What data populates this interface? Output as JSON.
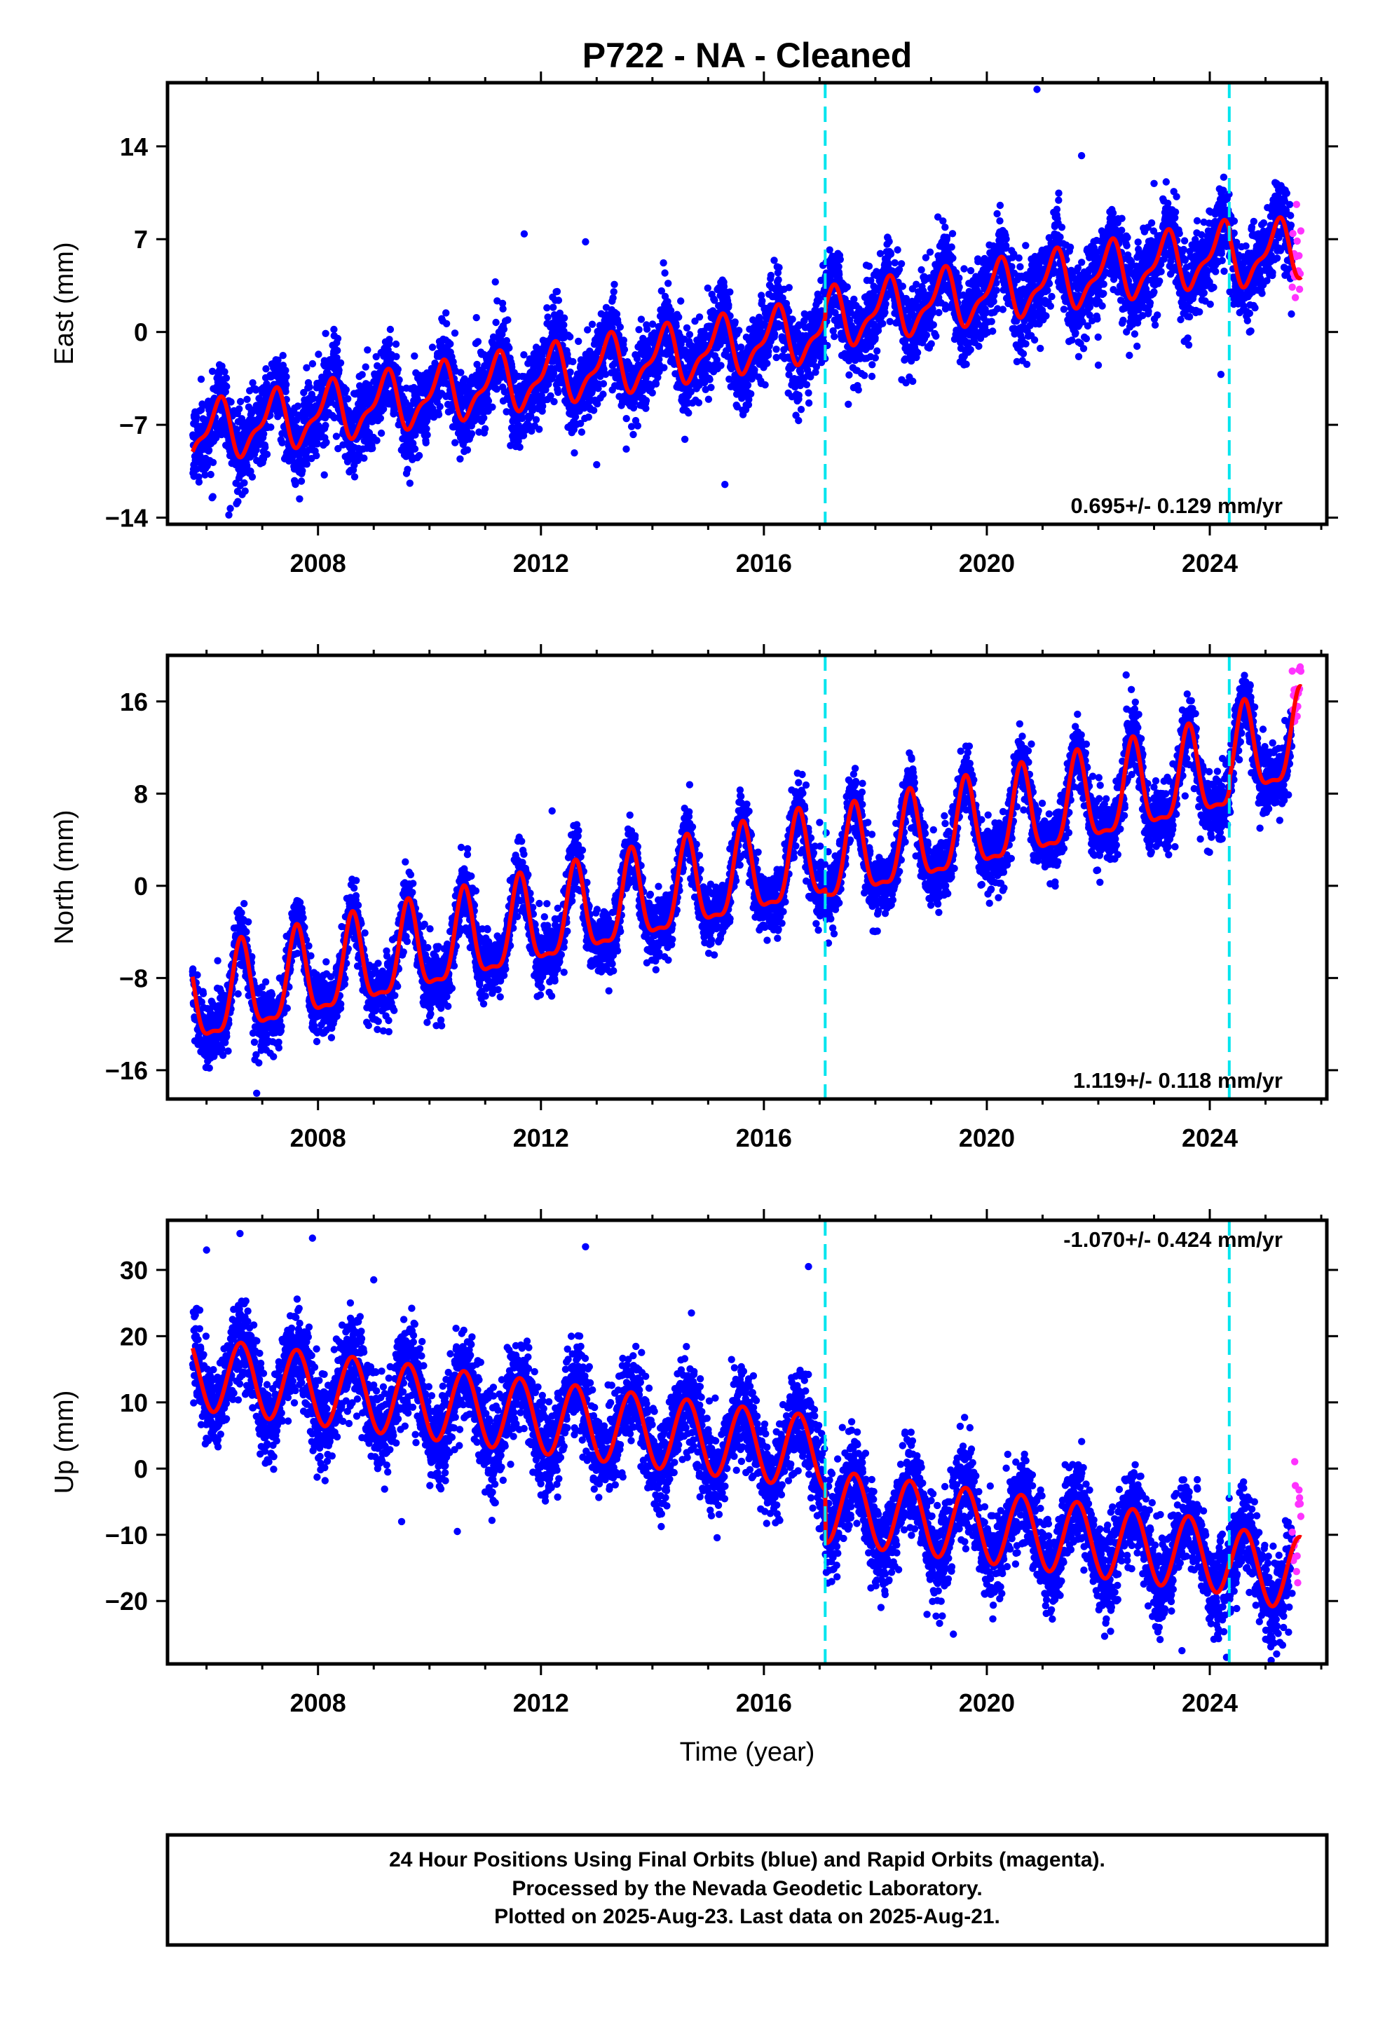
{
  "chart_data": {
    "type": "scatter",
    "title": "P722  - NA - Cleaned",
    "xlabel": "Time (year)",
    "xlim": [
      2005.3,
      2026.1
    ],
    "xticks": [
      2008,
      2012,
      2016,
      2020,
      2024
    ],
    "xtick_labels": [
      "2008",
      "2012",
      "2016",
      "2020",
      "2024"
    ],
    "data_start": 2005.75,
    "data_end": 2025.64,
    "rapid_start": 2025.48,
    "breaks": [
      2017.1,
      2024.35
    ],
    "colors": {
      "final": "#0000ff",
      "rapid": "#ff33ff",
      "model": "#ff0000",
      "break": "#00e5ee"
    },
    "series_styles": [
      {
        "label": "Final Orbits",
        "color": "blue"
      },
      {
        "label": "Rapid Orbits",
        "color": "magenta"
      },
      {
        "label": "Model fit",
        "color": "red"
      }
    ],
    "panels": [
      {
        "id": "east",
        "ylabel": "East (mm)",
        "ylim": [
          -14.5,
          18.8
        ],
        "yticks": [
          14,
          7,
          0,
          -7,
          -14
        ],
        "ytick_labels": [
          "14",
          "7",
          "0",
          "-7",
          "-14"
        ],
        "rate_label": "0.695+/- 0.129 mm/yr",
        "rate_position": "bottom-right",
        "model": {
          "ref_year": 2015.5,
          "intercept": -1.0,
          "rate": 0.695,
          "annual_amp": 2.0,
          "annual_peak": 0.2,
          "semi_amp": 0.8,
          "semi_peak": 0.3,
          "offsets": [
            [
              2017.1,
              0.8
            ],
            [
              2024.35,
              -0.5
            ]
          ]
        },
        "scatter_sd": 1.5,
        "outliers": [
          [
            2020.9,
            18.3
          ],
          [
            2011.7,
            7.4
          ],
          [
            2012.8,
            6.8
          ],
          [
            2021.7,
            13.3
          ],
          [
            2013.0,
            -10.0
          ],
          [
            2015.3,
            -11.5
          ],
          [
            2022.0,
            -2.5
          ],
          [
            2024.2,
            -3.2
          ],
          [
            2023.0,
            11.2
          ],
          [
            2006.1,
            -12.5
          ],
          [
            2006.4,
            -13.8
          ]
        ]
      },
      {
        "id": "north",
        "ylabel": "North (mm)",
        "ylim": [
          -18.5,
          20
        ],
        "yticks": [
          16,
          8,
          0,
          -8,
          -16
        ],
        "ytick_labels": [
          "16",
          "8",
          "0",
          "-8",
          "-16"
        ],
        "rate_label": "1.119+/- 0.118 mm/yr",
        "rate_position": "bottom-right",
        "model": {
          "ref_year": 2015.5,
          "intercept": 0.5,
          "rate": 1.119,
          "annual_amp": 3.8,
          "annual_peak": 0.62,
          "semi_amp": 1.2,
          "semi_peak": 0.12,
          "offsets": [
            [
              2017.1,
              -0.5
            ],
            [
              2024.35,
              1.0
            ]
          ]
        },
        "scatter_sd": 1.4,
        "outliers": [
          [
            2006.9,
            -18.0
          ],
          [
            2012.2,
            6.5
          ],
          [
            2022.5,
            18.3
          ],
          [
            2024.9,
            5.0
          ],
          [
            2017.0,
            5.5
          ],
          [
            2006.2,
            -6.5
          ],
          [
            2020.8,
            12.3
          ],
          [
            2021.9,
            9.5
          ]
        ]
      },
      {
        "id": "up",
        "ylabel": "Up (mm)",
        "ylim": [
          -29.5,
          37.5
        ],
        "yticks": [
          30,
          20,
          10,
          0,
          -10,
          -20
        ],
        "ytick_labels": [
          "30",
          "20",
          "10",
          "0",
          "-10",
          "-20"
        ],
        "rate_label": "-1.070+/- 0.424 mm/yr",
        "rate_position": "top-right",
        "model": {
          "ref_year": 2015.5,
          "intercept": 4.0,
          "rate": -1.07,
          "annual_amp": 5.5,
          "annual_peak": 0.62,
          "semi_amp": 0.0,
          "semi_peak": 0.0,
          "offsets": [
            [
              2017.1,
              -8.0
            ],
            [
              2024.35,
              -1.0
            ]
          ]
        },
        "scatter_sd": 3.5,
        "outliers": [
          [
            2006.6,
            35.5
          ],
          [
            2007.9,
            34.8
          ],
          [
            2012.8,
            33.5
          ],
          [
            2016.8,
            30.5
          ],
          [
            2006.0,
            33.0
          ],
          [
            2009.0,
            28.5
          ],
          [
            2014.7,
            23.5
          ],
          [
            2019.4,
            -25.0
          ],
          [
            2023.5,
            -27.5
          ],
          [
            2024.3,
            -28.5
          ],
          [
            2025.2,
            -28.0
          ],
          [
            2009.5,
            -8.0
          ],
          [
            2010.5,
            -9.5
          ]
        ]
      }
    ]
  },
  "footer": {
    "line1": "24 Hour Positions Using Final Orbits (blue) and Rapid Orbits (magenta).",
    "line2": "Processed by the Nevada Geodetic Laboratory.",
    "line3": "Plotted on 2025-Aug-23. Last data on 2025-Aug-21."
  }
}
